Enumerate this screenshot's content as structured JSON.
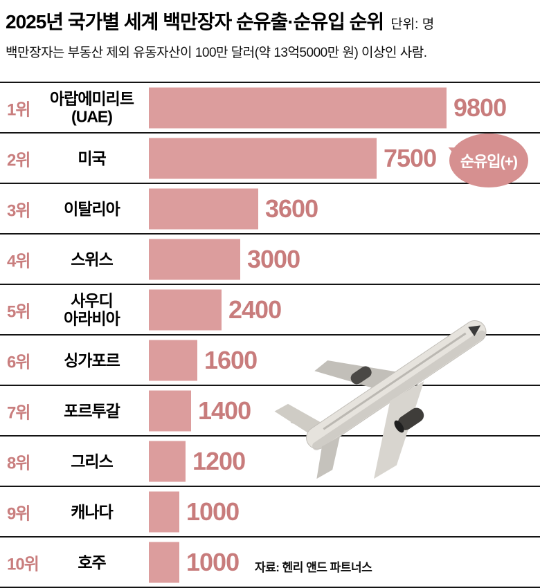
{
  "header": {
    "title": "2025년 국가별 세계 백만장자 순유출·순유입 순위",
    "unit": "단위: 명",
    "subtitle": "백만장자는 부동산 제외 유동자산이 100만 달러(약 13억5000만 원) 이상인 사람."
  },
  "chart_data": {
    "type": "bar",
    "orientation": "horizontal",
    "title": "2025년 국가별 세계 백만장자 순유출·순유입 순위",
    "unit": "명",
    "ranks": [
      "1위",
      "2위",
      "3위",
      "4위",
      "5위",
      "6위",
      "7위",
      "8위",
      "9위",
      "10위"
    ],
    "categories": [
      "아랍에미리트\n(UAE)",
      "미국",
      "이탈리아",
      "스위스",
      "사우디\n아라비아",
      "싱가포르",
      "포르투갈",
      "그리스",
      "캐나다",
      "호주"
    ],
    "values": [
      9800,
      7500,
      3600,
      3000,
      2400,
      1600,
      1400,
      1200,
      1000,
      1000
    ],
    "xlim": [
      0,
      9800
    ],
    "annotation": "순유입(+)",
    "bar_color": "#dc9d9d",
    "value_color": "#c87c7c",
    "grid": false,
    "legend": "none"
  },
  "bubble": {
    "label": "순유입(+)"
  },
  "source": {
    "label": "자료: 헨리 앤드 파트너스"
  }
}
